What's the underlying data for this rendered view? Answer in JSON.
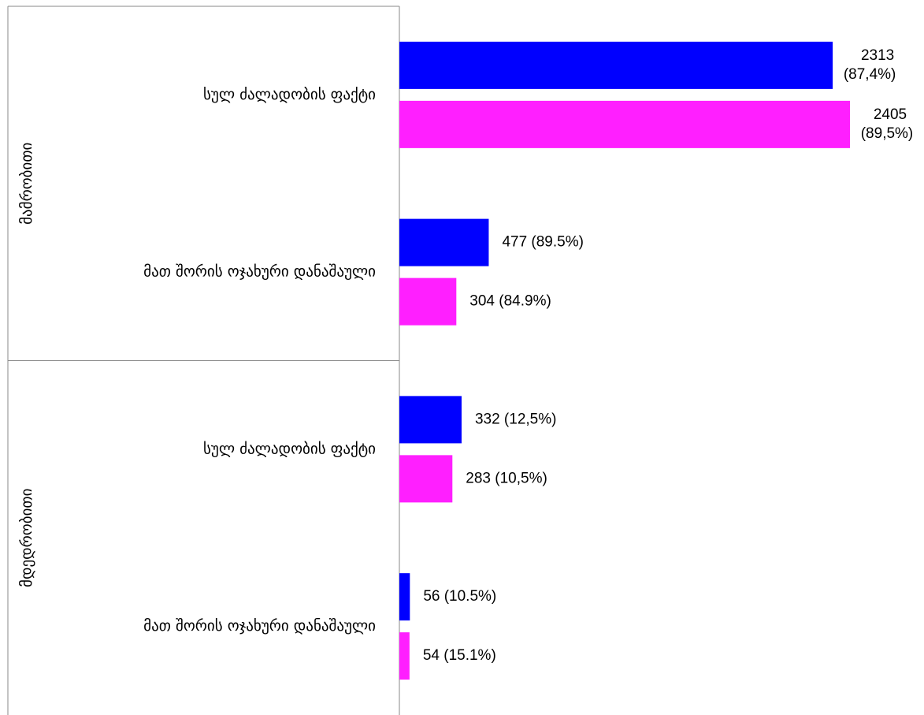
{
  "chart_data": {
    "type": "bar",
    "orientation": "horizontal",
    "colors": {
      "series_a": "#0000ff",
      "series_b": "#ff1fff",
      "axis": "#888888"
    },
    "groups": [
      {
        "label": "მამრობითი",
        "categories": [
          {
            "label": "სულ ძალადობის ფაქტი",
            "bars": [
              {
                "series": "a",
                "value": 2313,
                "label_lines": [
                  "2313",
                  "(87,4%)"
                ]
              },
              {
                "series": "b",
                "value": 2405,
                "label_lines": [
                  "2405",
                  "(89,5%)"
                ]
              }
            ]
          },
          {
            "label": "მათ შორის ოჯახური დანაშაული",
            "bars": [
              {
                "series": "a",
                "value": 477,
                "label_lines": [
                  "477 (89.5%)"
                ]
              },
              {
                "series": "b",
                "value": 304,
                "label_lines": [
                  "304 (84.9%)"
                ]
              }
            ]
          }
        ]
      },
      {
        "label": "მდედრობითი",
        "categories": [
          {
            "label": "სულ ძალადობის ფაქტი",
            "bars": [
              {
                "series": "a",
                "value": 332,
                "label_lines": [
                  "332 (12,5%)"
                ]
              },
              {
                "series": "b",
                "value": 283,
                "label_lines": [
                  "283 (10,5%)"
                ]
              }
            ]
          },
          {
            "label": "მათ შორის ოჯახური დანაშაული",
            "bars": [
              {
                "series": "a",
                "value": 56,
                "label_lines": [
                  "56 (10.5%)"
                ]
              },
              {
                "series": "b",
                "value": 54,
                "label_lines": [
                  "54 (15.1%)"
                ]
              }
            ]
          }
        ]
      }
    ],
    "xlim": [
      0,
      2405
    ],
    "grid": false,
    "legend": "none"
  }
}
